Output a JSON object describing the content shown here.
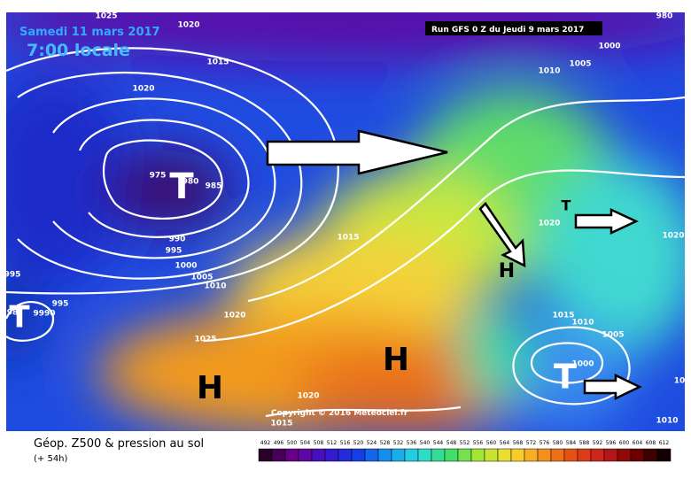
{
  "header": {
    "date": "Samedi 11 mars 2017",
    "time": "7:00 locale",
    "run": "Run GFS 0 Z du Jeudi 9 mars 2017"
  },
  "isobar_labels": [
    "1025",
    "1020",
    "1015",
    "1020",
    "975",
    "980",
    "985",
    "990",
    "995",
    "1000",
    "1005",
    "1010",
    "1015",
    "995",
    "98",
    "9990",
    "995",
    "1020",
    "1025",
    "1020",
    "1015",
    "980",
    "1000",
    "1005",
    "1010",
    "1020",
    "1020",
    "1015",
    "1010",
    "1005",
    "1000",
    "1010",
    "10"
  ],
  "centers": [
    "T",
    "T",
    "H",
    "H",
    "H",
    "T",
    "T"
  ],
  "copyright": "Copyright © 2016 Meteociel.fr",
  "legend": {
    "title": "Géop. Z500 & pression au sol",
    "lead": "(+ 54h)",
    "scale": [
      492,
      496,
      500,
      504,
      508,
      512,
      516,
      520,
      524,
      528,
      532,
      536,
      540,
      544,
      548,
      552,
      556,
      560,
      564,
      568,
      572,
      576,
      580,
      584,
      588,
      592,
      596,
      600,
      604,
      608,
      612
    ]
  }
}
